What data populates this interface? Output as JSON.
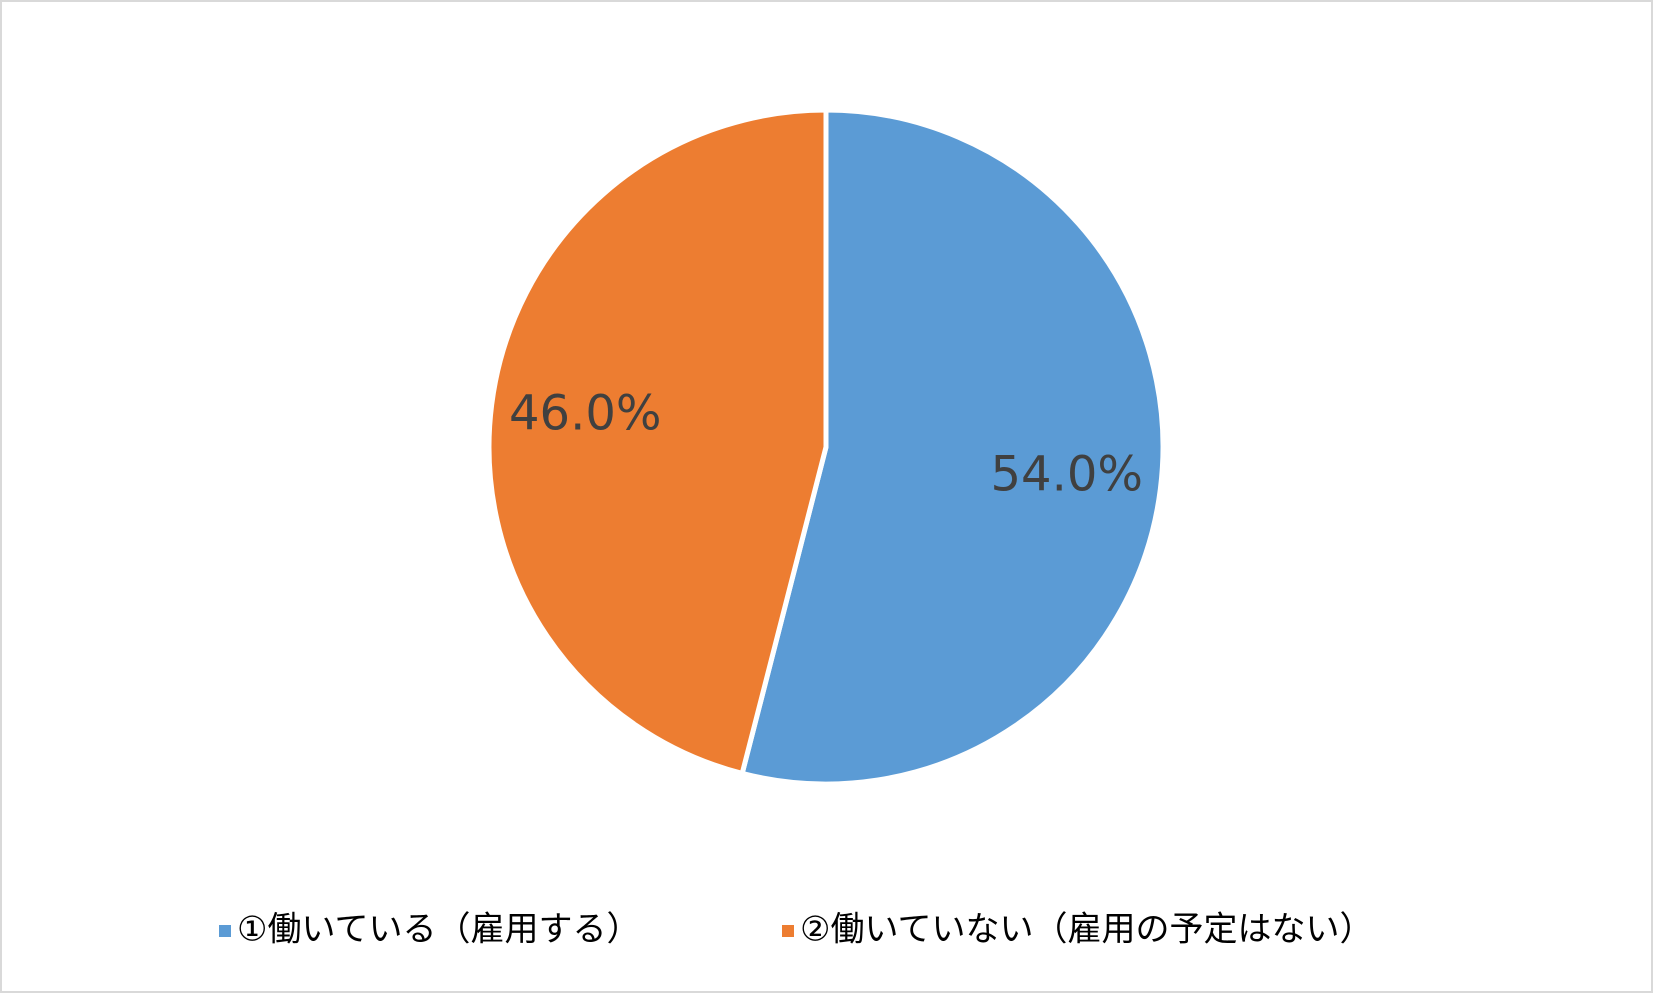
{
  "chart_data": {
    "type": "pie",
    "categories": [
      "①働いている（雇用する）",
      "②働いていない（雇用の予定はない）"
    ],
    "values": [
      54.0,
      46.0
    ],
    "value_labels": [
      "54.0%",
      "46.0%"
    ],
    "colors": [
      "#5b9bd5",
      "#ed7d31"
    ],
    "legend": "bottom"
  }
}
